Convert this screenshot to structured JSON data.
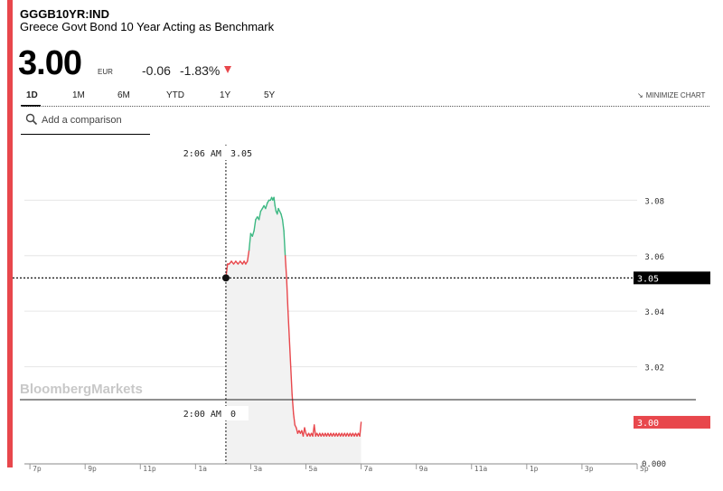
{
  "header": {
    "ticker": "GGGB10YR:IND",
    "name": "Greece Govt Bond 10 Year Acting as Benchmark",
    "price": "3.00",
    "currency": "EUR",
    "change": "-0.06",
    "change_pct": "-1.83%"
  },
  "tabs": [
    {
      "label": "1D",
      "active": true
    },
    {
      "label": "1M",
      "active": false
    },
    {
      "label": "6M",
      "active": false
    },
    {
      "label": "YTD",
      "active": false
    },
    {
      "label": "1Y",
      "active": false
    },
    {
      "label": "5Y",
      "active": false
    }
  ],
  "minimize_label": "MINIMIZE CHART",
  "search": {
    "placeholder": "Add a comparison"
  },
  "watermark": "BloombergMarkets",
  "colors": {
    "up": "#3cb882",
    "down": "#e8474c",
    "accent": "#e8474c",
    "fill": "#f2f2f2"
  },
  "chart_data": {
    "type": "line",
    "y_ticks": [
      "3.08",
      "3.06",
      "3.04",
      "3.02"
    ],
    "ylim": [
      2.985,
      3.1
    ],
    "x_ticks": [
      "7p",
      "9p",
      "11p",
      "1a",
      "3a",
      "5a",
      "7a",
      "9a",
      "11a",
      "1p",
      "3p",
      "5p"
    ],
    "x_tick_hours": [
      -5,
      -3,
      -1,
      1,
      3,
      5,
      7,
      9,
      11,
      13,
      15,
      17
    ],
    "xlim_hours": [
      -5.2,
      17.0
    ],
    "previous_close": 3.06,
    "last_value_label": "3.00",
    "crosshair": {
      "time_label": "2:06 AM",
      "value_label": "3.05",
      "x_hour": 2.1,
      "value": 3.052
    },
    "volume_marker": {
      "time_label": "2:00 AM",
      "value_label": "0",
      "axis_label": "0.000"
    },
    "series": [
      {
        "x_hours": [
          2.1,
          2.16,
          2.22,
          2.3,
          2.38,
          2.46,
          2.54,
          2.62,
          2.7,
          2.76,
          2.82,
          2.88,
          2.94,
          3.0,
          3.06,
          3.12,
          3.18,
          3.24,
          3.3,
          3.36,
          3.42,
          3.48,
          3.54,
          3.6,
          3.66,
          3.72,
          3.76,
          3.8,
          3.84,
          3.88,
          3.92,
          3.96,
          4.0,
          4.05,
          4.1,
          4.15,
          4.2,
          4.25,
          4.3,
          4.35,
          4.4,
          4.45,
          4.5,
          4.55,
          4.6,
          4.65,
          4.7,
          4.75,
          4.8,
          4.85,
          4.9,
          4.95,
          5.0,
          5.05,
          5.1,
          5.15,
          5.2,
          5.25,
          5.3,
          5.35,
          5.4,
          5.45,
          5.5,
          5.55,
          5.6,
          5.65,
          5.7,
          5.75,
          5.8,
          5.85,
          5.9,
          5.95,
          6.0,
          6.05,
          6.1,
          6.15,
          6.2,
          6.25,
          6.3,
          6.35,
          6.4,
          6.45,
          6.5,
          6.55,
          6.6,
          6.65,
          6.7,
          6.75,
          6.8,
          6.85,
          6.9,
          6.95,
          7.0
        ],
        "values": [
          3.052,
          3.057,
          3.057,
          3.058,
          3.057,
          3.058,
          3.057,
          3.058,
          3.057,
          3.058,
          3.057,
          3.058,
          3.062,
          3.068,
          3.067,
          3.069,
          3.073,
          3.074,
          3.073,
          3.076,
          3.077,
          3.078,
          3.077,
          3.079,
          3.08,
          3.08,
          3.081,
          3.08,
          3.081,
          3.078,
          3.076,
          3.075,
          3.077,
          3.076,
          3.075,
          3.073,
          3.069,
          3.06,
          3.052,
          3.04,
          3.03,
          3.02,
          3.01,
          3.003,
          2.999,
          2.998,
          2.996,
          2.997,
          2.996,
          2.997,
          2.995,
          2.998,
          2.996,
          2.995,
          2.996,
          2.995,
          2.996,
          2.995,
          2.999,
          2.995,
          2.996,
          2.995,
          2.996,
          2.995,
          2.996,
          2.995,
          2.996,
          2.995,
          2.996,
          2.995,
          2.996,
          2.995,
          2.996,
          2.995,
          2.996,
          2.995,
          2.996,
          2.995,
          2.996,
          2.995,
          2.996,
          2.995,
          2.996,
          2.995,
          2.996,
          2.995,
          2.996,
          2.995,
          2.996,
          2.995,
          2.996,
          2.995,
          3.0
        ]
      }
    ]
  }
}
